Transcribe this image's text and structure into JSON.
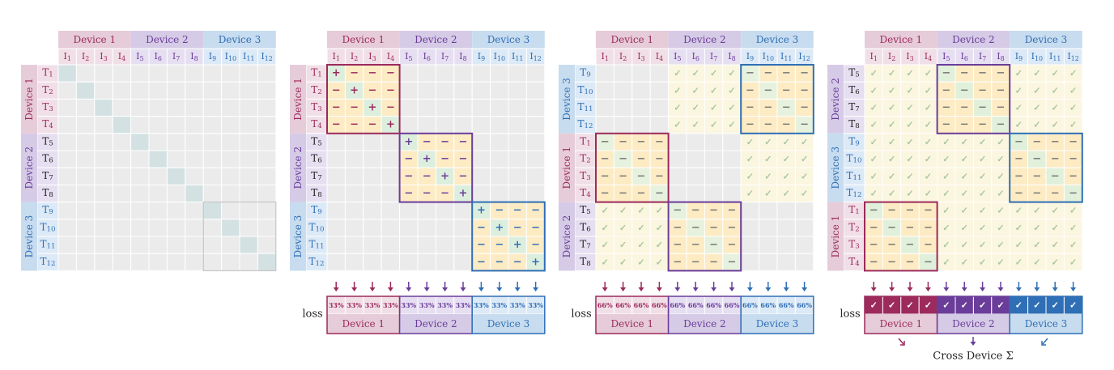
{
  "devices": [
    {
      "label": "Device 1",
      "color": "#9c2a5c",
      "header_bg": "#e6ccd8",
      "cell_bg": "#f1dfe7"
    },
    {
      "label": "Device 2",
      "color": "#6a3d9a",
      "header_bg": "#d6cbe6",
      "cell_bg": "#e6def1"
    },
    {
      "label": "Device 3",
      "color": "#2f6fb5",
      "header_bg": "#c8dcef",
      "cell_bg": "#dce9f6"
    }
  ],
  "image_labels": [
    {
      "letter": "I",
      "sub": "1"
    },
    {
      "letter": "I",
      "sub": "2"
    },
    {
      "letter": "I",
      "sub": "3"
    },
    {
      "letter": "I",
      "sub": "4"
    },
    {
      "letter": "I",
      "sub": "5"
    },
    {
      "letter": "I",
      "sub": "6"
    },
    {
      "letter": "I",
      "sub": "7"
    },
    {
      "letter": "I",
      "sub": "8"
    },
    {
      "letter": "I",
      "sub": "9"
    },
    {
      "letter": "I",
      "sub": "10"
    },
    {
      "letter": "I",
      "sub": "11"
    },
    {
      "letter": "I",
      "sub": "12"
    }
  ],
  "text_labels": [
    {
      "letter": "T",
      "sub": "1"
    },
    {
      "letter": "T",
      "sub": "2"
    },
    {
      "letter": "T",
      "sub": "3"
    },
    {
      "letter": "T",
      "sub": "4"
    },
    {
      "letter": "T",
      "sub": "5"
    },
    {
      "letter": "T",
      "sub": "6"
    },
    {
      "letter": "T",
      "sub": "7"
    },
    {
      "letter": "T",
      "sub": "8"
    },
    {
      "letter": "T",
      "sub": "9"
    },
    {
      "letter": "T",
      "sub": "10"
    },
    {
      "letter": "T",
      "sub": "11"
    },
    {
      "letter": "T",
      "sub": "12"
    }
  ],
  "symbols": {
    "positive": "+",
    "negative": "−",
    "computed": "✓"
  },
  "loss_label": "loss",
  "panels": [
    {
      "row_order": [
        0,
        1,
        2
      ],
      "mode": "diagonal",
      "has_loss": false
    },
    {
      "row_order": [
        0,
        1,
        2
      ],
      "mode": "local",
      "has_loss": true,
      "loss_values": [
        "33%",
        "33%",
        "33%",
        "33%",
        "33%",
        "33%",
        "33%",
        "33%",
        "33%",
        "33%",
        "33%",
        "33%"
      ]
    },
    {
      "row_order": [
        2,
        0,
        1
      ],
      "mode": "step",
      "has_loss": true,
      "loss_values": [
        "66%",
        "66%",
        "66%",
        "66%",
        "66%",
        "66%",
        "66%",
        "66%",
        "66%",
        "66%",
        "66%",
        "66%"
      ]
    },
    {
      "row_order": [
        1,
        2,
        0
      ],
      "mode": "step_full",
      "has_loss": true,
      "loss_values": [
        "✓",
        "✓",
        "✓",
        "✓",
        "✓",
        "✓",
        "✓",
        "✓",
        "✓",
        "✓",
        "✓",
        "✓"
      ]
    }
  ],
  "cross_device_label": "Cross Device Σ",
  "colors": {
    "grid_bg": "#ebebeb",
    "diag_bg": "#d3e1e3",
    "neg_bg": "#fdebc4",
    "pos_bg": "#dceedd",
    "check_bg": "#fbf6df",
    "check_color": "#a9c79d"
  }
}
